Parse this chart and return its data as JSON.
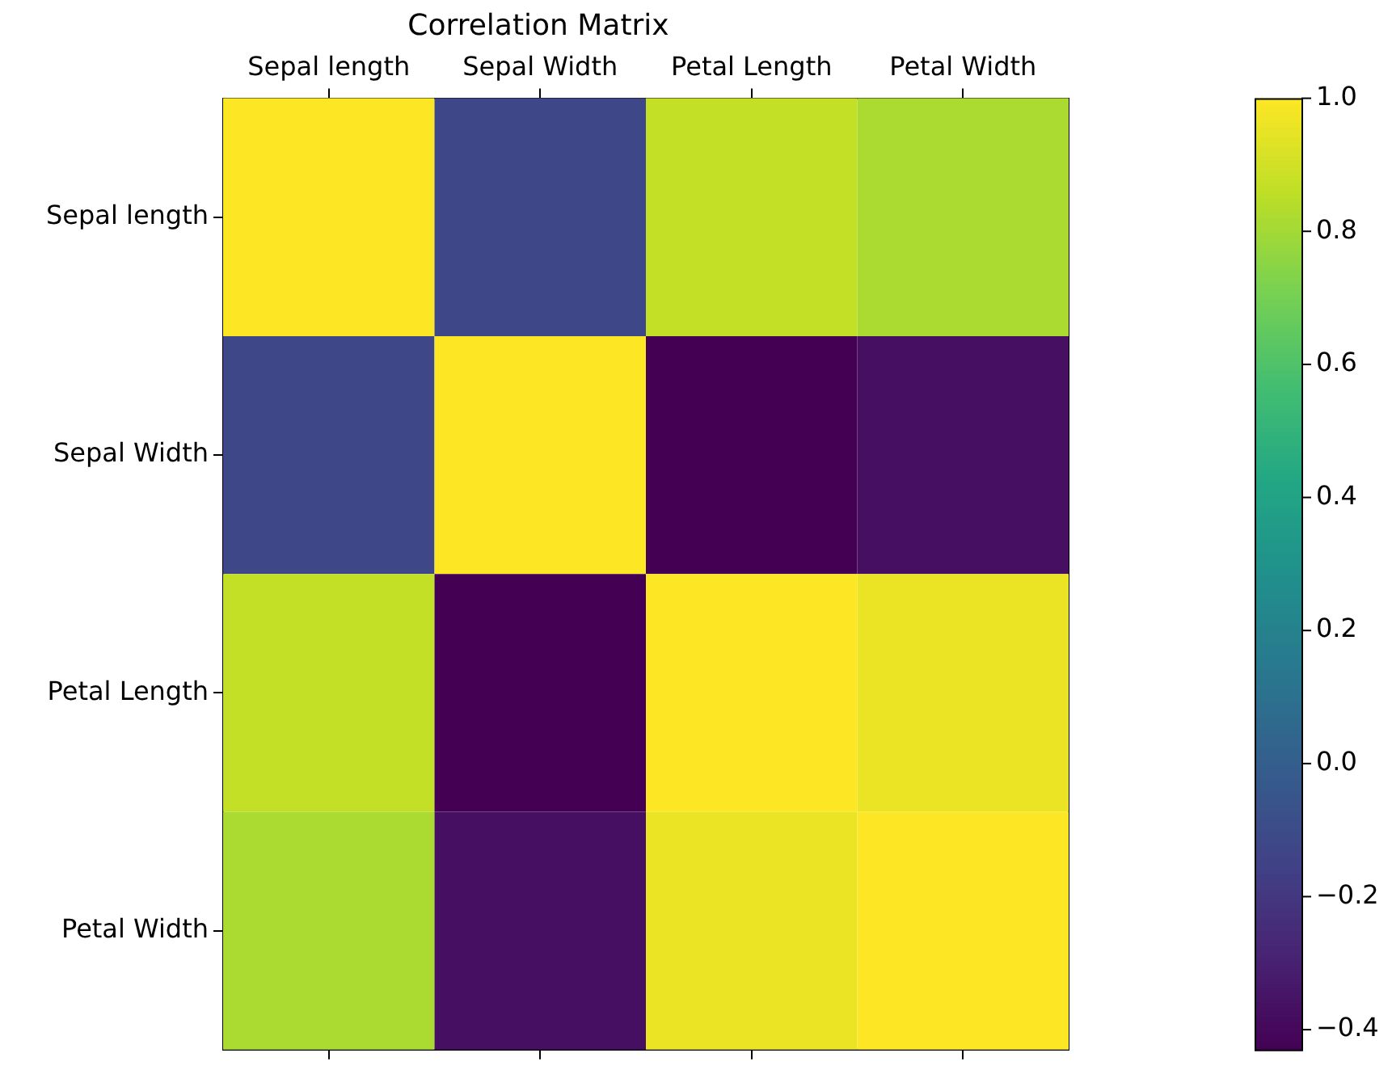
{
  "chart_data": {
    "type": "heatmap",
    "title": "Correlation Matrix",
    "categories": [
      "Sepal length",
      "Sepal Width",
      "Petal Length",
      "Petal Width"
    ],
    "y_categories": [
      "Sepal length",
      "Sepal Width",
      "Petal Length",
      "Petal Width"
    ],
    "cells": [
      [
        1.0,
        -0.12,
        0.87,
        0.82
      ],
      [
        -0.12,
        1.0,
        -0.43,
        -0.37
      ],
      [
        0.87,
        -0.43,
        1.0,
        0.96
      ],
      [
        0.82,
        -0.37,
        0.96,
        1.0
      ]
    ],
    "clim": [
      -0.43,
      1.0
    ],
    "cticks": [
      {
        "value": -0.4,
        "label": "−0.4"
      },
      {
        "value": -0.2,
        "label": "−0.2"
      },
      {
        "value": 0,
        "label": "0.0"
      },
      0.2,
      0.4,
      0.6,
      0.8,
      {
        "value": 1,
        "label": "1.0"
      }
    ]
  }
}
